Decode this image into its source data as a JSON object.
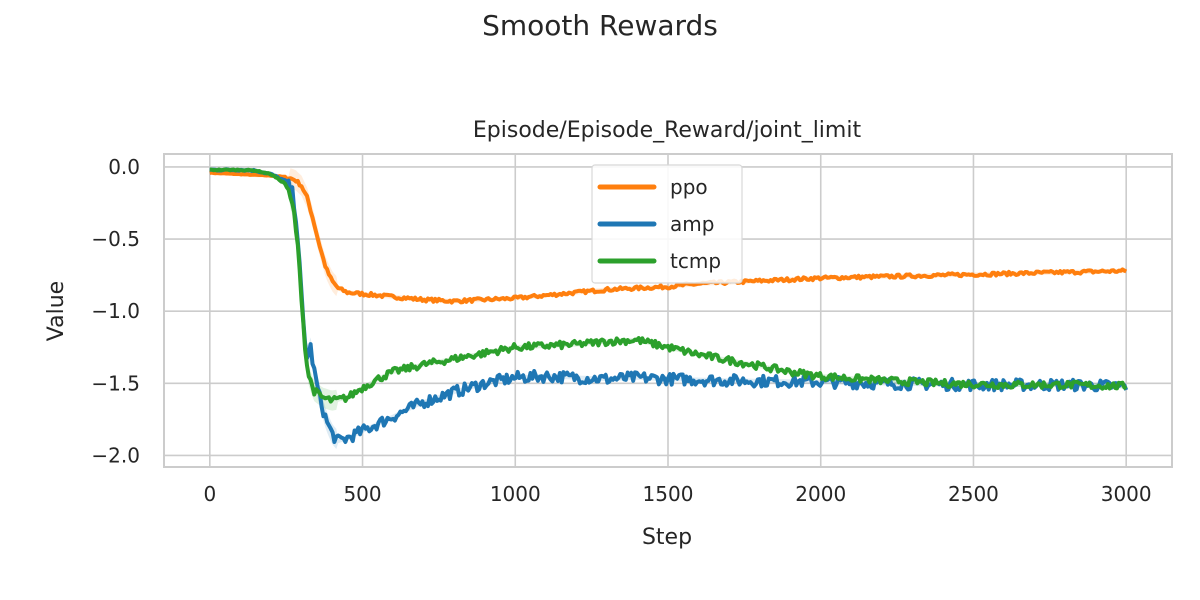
{
  "chart_data": {
    "type": "line",
    "suptitle": "Smooth Rewards",
    "title": "Episode/Episode_Reward/joint_limit",
    "xlabel": "Step",
    "ylabel": "Value",
    "xlim": [
      -150,
      3150
    ],
    "ylim": [
      -2.08,
      0.09
    ],
    "xticks": [
      0,
      500,
      1000,
      1500,
      2000,
      2500,
      3000
    ],
    "xtick_labels": [
      "0",
      "500",
      "1000",
      "1500",
      "2000",
      "2500",
      "3000"
    ],
    "yticks": [
      0.0,
      -0.5,
      -1.0,
      -1.5,
      -2.0
    ],
    "ytick_labels": [
      "0.0",
      "−0.5",
      "−1.0",
      "−1.5",
      "−2.0"
    ],
    "grid": true,
    "legend": "top-center",
    "series": [
      {
        "name": "ppo",
        "color": "#ff7f0e",
        "noise": 0.012,
        "points": [
          [
            0,
            -0.04
          ],
          [
            50,
            -0.045
          ],
          [
            100,
            -0.05
          ],
          [
            150,
            -0.055
          ],
          [
            200,
            -0.06
          ],
          [
            250,
            -0.07
          ],
          [
            280,
            -0.09
          ],
          [
            300,
            -0.13
          ],
          [
            320,
            -0.22
          ],
          [
            340,
            -0.38
          ],
          [
            360,
            -0.55
          ],
          [
            380,
            -0.7
          ],
          [
            400,
            -0.79
          ],
          [
            420,
            -0.84
          ],
          [
            450,
            -0.87
          ],
          [
            500,
            -0.88
          ],
          [
            600,
            -0.9
          ],
          [
            700,
            -0.92
          ],
          [
            800,
            -0.93
          ],
          [
            900,
            -0.92
          ],
          [
            1000,
            -0.91
          ],
          [
            1100,
            -0.89
          ],
          [
            1200,
            -0.87
          ],
          [
            1300,
            -0.85
          ],
          [
            1400,
            -0.84
          ],
          [
            1500,
            -0.83
          ],
          [
            1600,
            -0.81
          ],
          [
            1800,
            -0.79
          ],
          [
            2000,
            -0.77
          ],
          [
            2200,
            -0.76
          ],
          [
            2400,
            -0.75
          ],
          [
            2600,
            -0.74
          ],
          [
            2800,
            -0.73
          ],
          [
            3000,
            -0.72
          ]
        ]
      },
      {
        "name": "amp",
        "color": "#1f77b4",
        "noise": 0.04,
        "points": [
          [
            0,
            -0.02
          ],
          [
            100,
            -0.02
          ],
          [
            150,
            -0.025
          ],
          [
            200,
            -0.05
          ],
          [
            250,
            -0.1
          ],
          [
            270,
            -0.18
          ],
          [
            280,
            -0.3
          ],
          [
            290,
            -0.55
          ],
          [
            300,
            -0.9
          ],
          [
            310,
            -1.2
          ],
          [
            320,
            -1.33
          ],
          [
            330,
            -1.25
          ],
          [
            340,
            -1.4
          ],
          [
            360,
            -1.6
          ],
          [
            380,
            -1.75
          ],
          [
            400,
            -1.85
          ],
          [
            420,
            -1.9
          ],
          [
            450,
            -1.88
          ],
          [
            500,
            -1.83
          ],
          [
            550,
            -1.78
          ],
          [
            600,
            -1.73
          ],
          [
            650,
            -1.68
          ],
          [
            700,
            -1.63
          ],
          [
            800,
            -1.56
          ],
          [
            900,
            -1.5
          ],
          [
            1000,
            -1.46
          ],
          [
            1100,
            -1.45
          ],
          [
            1200,
            -1.46
          ],
          [
            1300,
            -1.47
          ],
          [
            1400,
            -1.46
          ],
          [
            1500,
            -1.47
          ],
          [
            1700,
            -1.48
          ],
          [
            2000,
            -1.49
          ],
          [
            2200,
            -1.5
          ],
          [
            2500,
            -1.51
          ],
          [
            2800,
            -1.51
          ],
          [
            3000,
            -1.52
          ]
        ]
      },
      {
        "name": "tcmp",
        "color": "#2ca02c",
        "noise": 0.025,
        "points": [
          [
            0,
            -0.02
          ],
          [
            100,
            -0.02
          ],
          [
            150,
            -0.025
          ],
          [
            200,
            -0.05
          ],
          [
            250,
            -0.12
          ],
          [
            275,
            -0.3
          ],
          [
            290,
            -0.6
          ],
          [
            300,
            -0.9
          ],
          [
            310,
            -1.2
          ],
          [
            320,
            -1.42
          ],
          [
            340,
            -1.55
          ],
          [
            370,
            -1.6
          ],
          [
            400,
            -1.62
          ],
          [
            450,
            -1.6
          ],
          [
            500,
            -1.53
          ],
          [
            550,
            -1.47
          ],
          [
            600,
            -1.42
          ],
          [
            700,
            -1.37
          ],
          [
            800,
            -1.33
          ],
          [
            900,
            -1.29
          ],
          [
            1000,
            -1.25
          ],
          [
            1100,
            -1.24
          ],
          [
            1200,
            -1.23
          ],
          [
            1300,
            -1.21
          ],
          [
            1400,
            -1.2
          ],
          [
            1500,
            -1.25
          ],
          [
            1600,
            -1.3
          ],
          [
            1700,
            -1.34
          ],
          [
            1800,
            -1.38
          ],
          [
            1900,
            -1.42
          ],
          [
            2000,
            -1.45
          ],
          [
            2200,
            -1.48
          ],
          [
            2400,
            -1.5
          ],
          [
            2600,
            -1.51
          ],
          [
            2800,
            -1.51
          ],
          [
            3000,
            -1.52
          ]
        ]
      }
    ]
  }
}
